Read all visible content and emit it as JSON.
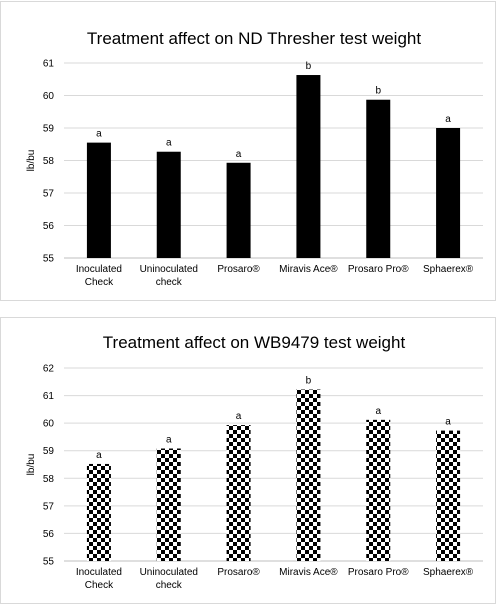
{
  "chart_data": [
    {
      "type": "bar",
      "title": "Treatment affect on ND Thresher test weight",
      "ylabel": "lb/bu",
      "xlabel": "",
      "ylim": [
        55,
        61
      ],
      "yticks": [
        55,
        56,
        57,
        58,
        59,
        60,
        61
      ],
      "grid": true,
      "bar_style": "solid-black",
      "categories": [
        [
          "Inoculated",
          "Check"
        ],
        [
          "Uninoculated",
          "check"
        ],
        [
          "Prosaro®"
        ],
        [
          "Miravis Ace®"
        ],
        [
          "Prosaro Pro®"
        ],
        [
          "Sphaerex®"
        ]
      ],
      "values": [
        58.55,
        58.27,
        57.93,
        60.63,
        59.87,
        59.0
      ],
      "annotations": [
        "a",
        "a",
        "a",
        "b",
        "b",
        "a"
      ]
    },
    {
      "type": "bar",
      "title": "Treatment affect on WB9479 test weight",
      "ylabel": "lb/bu",
      "xlabel": "",
      "ylim": [
        55,
        62
      ],
      "yticks": [
        55,
        56,
        57,
        58,
        59,
        60,
        61,
        62
      ],
      "grid": true,
      "bar_style": "checkerboard",
      "categories": [
        [
          "Inoculated",
          "Check"
        ],
        [
          "Uninoculated",
          "check"
        ],
        [
          "Prosaro®"
        ],
        [
          "Miravis Ace®"
        ],
        [
          "Prosaro Pro®"
        ],
        [
          "Sphaerex®"
        ]
      ],
      "values": [
        58.52,
        59.08,
        59.93,
        61.22,
        60.12,
        59.73
      ],
      "annotations": [
        "a",
        "a",
        "a",
        "b",
        "a",
        "a"
      ]
    }
  ],
  "colors": {
    "bar": "#000000",
    "grid": "#d9d9d9",
    "axis": "#bfbfbf",
    "pattern_light": "#ffffff"
  }
}
